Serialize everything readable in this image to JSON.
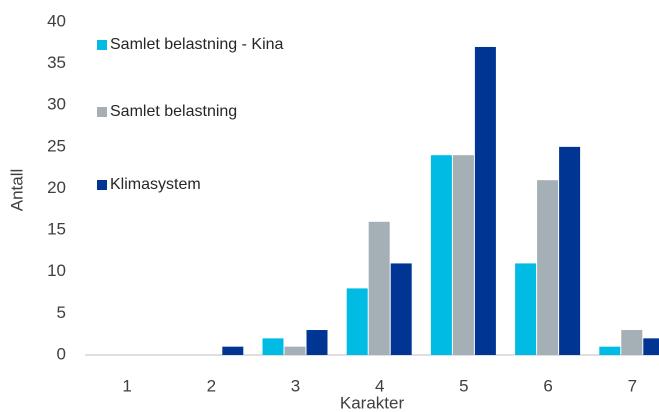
{
  "chart_data": {
    "type": "bar",
    "categories": [
      "1",
      "2",
      "3",
      "4",
      "5",
      "6",
      "7"
    ],
    "series": [
      {
        "name": "Samlet belastning - Kina",
        "color": "#00bce4",
        "values": [
          0,
          0,
          2,
          8,
          24,
          11,
          1
        ]
      },
      {
        "name": "Samlet belastning",
        "color": "#a5afb6",
        "values": [
          0,
          0,
          1,
          16,
          24,
          21,
          3
        ]
      },
      {
        "name": "Klimasystem",
        "color": "#003593",
        "values": [
          0,
          1,
          3,
          11,
          37,
          25,
          2
        ]
      }
    ],
    "xlabel": "Karakter",
    "ylabel": "Antall",
    "ylim": [
      0,
      40
    ],
    "yticks": [
      0,
      5,
      10,
      15,
      20,
      25,
      30,
      35,
      40
    ],
    "grid": false,
    "legend": "upper left"
  }
}
